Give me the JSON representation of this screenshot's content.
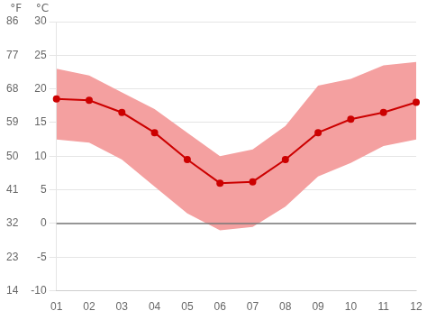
{
  "chart_data": {
    "type": "line",
    "categories": [
      "01",
      "02",
      "03",
      "04",
      "05",
      "06",
      "07",
      "08",
      "09",
      "10",
      "11",
      "12"
    ],
    "series": [
      {
        "color": "#cc0000",
        "marker": "circle",
        "values": [
          18.5,
          18.3,
          16.5,
          13.5,
          9.5,
          6.0,
          6.2,
          9.5,
          13.5,
          15.5,
          16.5,
          18.0
        ]
      }
    ],
    "band": {
      "color": "#f4a0a0",
      "max": [
        23.0,
        22.0,
        19.5,
        17.0,
        13.5,
        10.0,
        11.0,
        14.5,
        20.5,
        21.5,
        23.5,
        24.0
      ],
      "min": [
        12.5,
        12.0,
        9.5,
        5.5,
        1.5,
        -1.0,
        -0.5,
        2.5,
        7.0,
        9.0,
        11.5,
        12.5
      ]
    },
    "zero_line": {
      "value": 0,
      "color": "#777777"
    },
    "ylabel": "°C",
    "ylim": [
      -10,
      30
    ],
    "yticks": [
      -10,
      -5,
      0,
      5,
      10,
      15,
      20,
      25,
      30
    ],
    "y2label": "°F",
    "y2lim": [
      14,
      86
    ],
    "y2ticks": [
      14,
      23,
      32,
      41,
      50,
      59,
      68,
      77,
      86
    ],
    "grid": true
  }
}
